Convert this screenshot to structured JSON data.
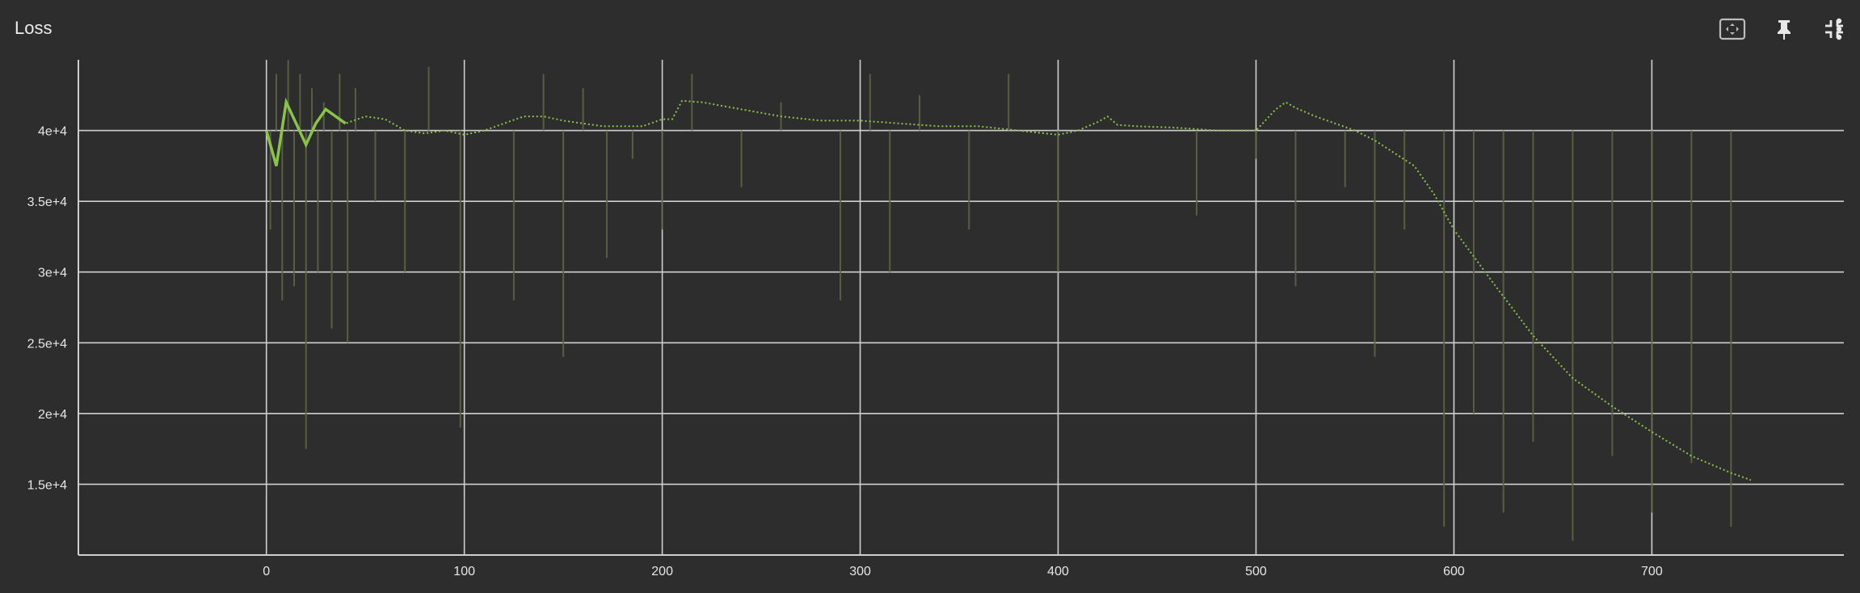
{
  "card": {
    "title": "Loss"
  },
  "toolbar": {
    "buttons": [
      {
        "name": "fit-to-data-button",
        "icon": "fit-domain-icon"
      },
      {
        "name": "pin-button",
        "icon": "pin-icon"
      },
      {
        "name": "collapse-button",
        "icon": "collapse-icon"
      },
      {
        "name": "more-options-button",
        "icon": "more-vert-icon"
      }
    ]
  },
  "colors": {
    "background": "#2d2d2d",
    "grid": "#cfcfcf",
    "smoothed_line": "#8bc34a",
    "raw_line": "#5c6448"
  },
  "chart_data": {
    "type": "line",
    "title": "Loss",
    "xlabel": "",
    "ylabel": "",
    "xlim": [
      -95,
      797
    ],
    "ylim": [
      10000,
      45000
    ],
    "x_ticks": [
      0,
      100,
      200,
      300,
      400,
      500,
      600,
      700
    ],
    "x_tick_labels": [
      "0",
      "100",
      "200",
      "300",
      "400",
      "500",
      "600",
      "700"
    ],
    "y_ticks": [
      15000,
      20000,
      25000,
      30000,
      35000,
      40000
    ],
    "y_tick_labels": [
      "1.5e+4",
      "2e+4",
      "2.5e+4",
      "3e+4",
      "3.5e+4",
      "4e+4"
    ],
    "grid": true,
    "legend": "none",
    "series": [
      {
        "style": "smoothed",
        "x": [
          0,
          5,
          10,
          15,
          20,
          25,
          30,
          40,
          50,
          60,
          70,
          80,
          90,
          100,
          110,
          120,
          130,
          140,
          150,
          160,
          170,
          180,
          190,
          200,
          205,
          210,
          220,
          240,
          260,
          280,
          300,
          320,
          340,
          360,
          380,
          400,
          410,
          420,
          425,
          430,
          440,
          460,
          480,
          500,
          510,
          515,
          520,
          530,
          540,
          550,
          560,
          570,
          580,
          590,
          600,
          620,
          640,
          660,
          680,
          700,
          720,
          740,
          750
        ],
        "y": [
          40000,
          37500,
          42000,
          40500,
          39000,
          40500,
          41500,
          40500,
          41000,
          40800,
          40000,
          39800,
          40000,
          39700,
          40000,
          40500,
          41000,
          41000,
          40700,
          40500,
          40300,
          40300,
          40300,
          40800,
          40800,
          42100,
          42000,
          41500,
          41000,
          40700,
          40700,
          40500,
          40300,
          40300,
          40000,
          39700,
          40000,
          40600,
          41000,
          40400,
          40300,
          40200,
          40000,
          40000,
          41500,
          42000,
          41600,
          41000,
          40500,
          40000,
          39300,
          38400,
          37500,
          35500,
          33000,
          29200,
          25500,
          22500,
          20500,
          18700,
          17000,
          15800,
          15300
        ]
      },
      {
        "style": "raw",
        "x": [
          2,
          5,
          8,
          11,
          14,
          17,
          20,
          23,
          26,
          29,
          33,
          37,
          41,
          45,
          55,
          70,
          82,
          98,
          110,
          125,
          140,
          150,
          160,
          172,
          185,
          200,
          215,
          240,
          260,
          290,
          305,
          315,
          330,
          355,
          375,
          400,
          430,
          470,
          500,
          520,
          545,
          560,
          575,
          595,
          610,
          625,
          640,
          660,
          680,
          700,
          720,
          740
        ],
        "y": [
          33000,
          44000,
          28000,
          45000,
          29000,
          44000,
          17500,
          43000,
          30000,
          42000,
          26000,
          44000,
          25000,
          43000,
          35000,
          30000,
          44500,
          19000,
          40000,
          28000,
          44000,
          24000,
          43000,
          31000,
          38000,
          33000,
          44000,
          36000,
          42000,
          28000,
          44000,
          30000,
          42500,
          33000,
          44000,
          30000,
          40000,
          34000,
          38000,
          29000,
          36000,
          24000,
          33000,
          12000,
          20000,
          13000,
          18000,
          11000,
          17000,
          13000,
          16500,
          12000
        ]
      }
    ]
  }
}
